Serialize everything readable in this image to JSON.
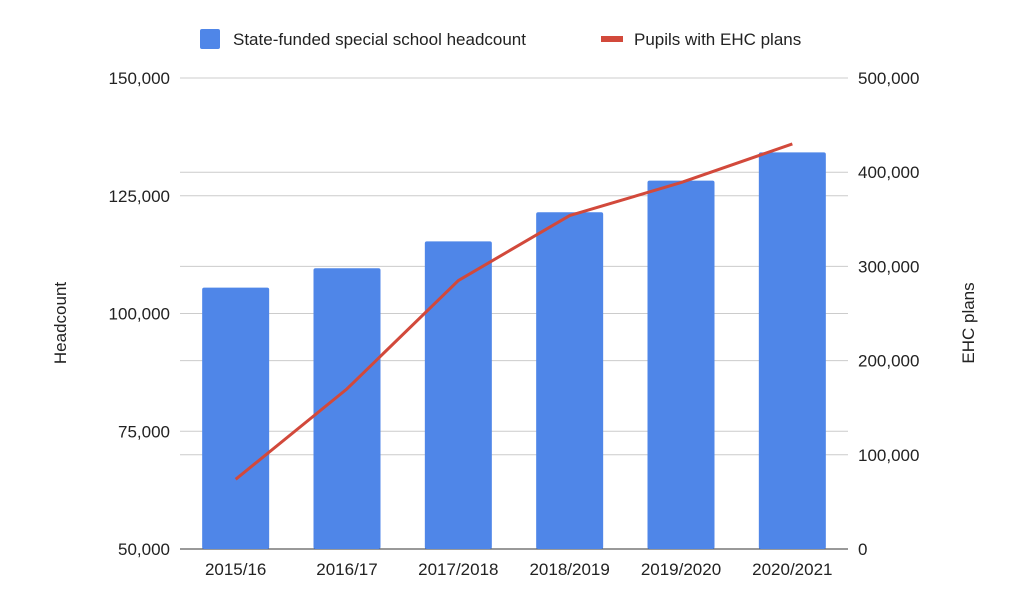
{
  "colors": {
    "bar": "#4f86e8",
    "line": "#d2493b",
    "grid": "#cccccc"
  },
  "chart_data": {
    "type": "bar+line",
    "categories": [
      "2015/16",
      "2016/17",
      "2017/2018",
      "2018/2019",
      "2019/2020",
      "2020/2021"
    ],
    "series": [
      {
        "name": "State-funded special school headcount",
        "type": "bar",
        "axis": "left",
        "values": [
          105500,
          109600,
          115300,
          121500,
          128200,
          134200
        ]
      },
      {
        "name": "Pupils with EHC plans",
        "type": "line",
        "axis": "right",
        "values": [
          74000,
          170000,
          285000,
          354000,
          389000,
          430000
        ]
      }
    ],
    "ylabel": "Headcount",
    "y2label": "EHC plans",
    "ylim": [
      50000,
      150000
    ],
    "y2lim": [
      0,
      500000
    ],
    "yticks": [
      "50,000",
      "75,000",
      "100,000",
      "125,000",
      "150,000"
    ],
    "y2ticks": [
      "0",
      "100,000",
      "200,000",
      "300,000",
      "400,000",
      "500,000"
    ],
    "grid": true,
    "legend_position": "top"
  }
}
